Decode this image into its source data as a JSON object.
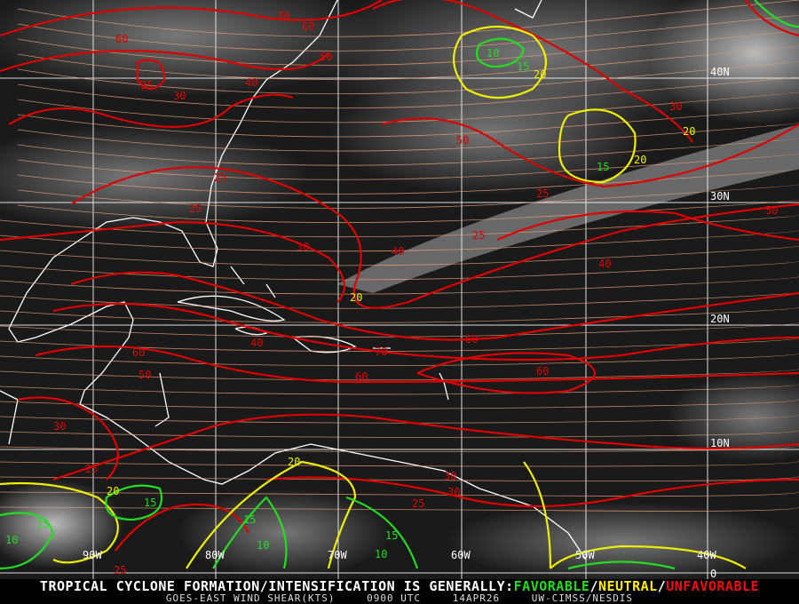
{
  "map": {
    "title_prefix": "TROPICAL CYCLONE FORMATION/INTENSIFICATION IS GENERALLY:",
    "legend": [
      {
        "label": "FAVORABLE",
        "color": "#22dd22"
      },
      {
        "label": "/",
        "color": "#ffffff"
      },
      {
        "label": "NEUTRAL",
        "color": "#ffee00"
      },
      {
        "label": "/",
        "color": "#ffffff"
      },
      {
        "label": "UNFAVORABLE",
        "color": "#ee1111"
      }
    ],
    "product": "GOES-EAST WIND SHEAR(KTS)",
    "time": "0900 UTC",
    "date": "14APR26",
    "source": "UW-CIMSS/NESDIS",
    "lat_labels": [
      "40N",
      "30N",
      "20N",
      "10N",
      "0"
    ],
    "lon_labels": [
      "90W",
      "80W",
      "70W",
      "60W",
      "50W",
      "40W"
    ],
    "colors": {
      "unfavorable": "#dd0000",
      "neutral": "#eeee00",
      "favorable": "#22dd22",
      "streamline": "#f0a070",
      "coast": "#ffffff",
      "grid": "#ffffff"
    },
    "contour_labels": {
      "red": [
        "70",
        "60",
        "50",
        "60",
        "25",
        "30",
        "40",
        "50",
        "30",
        "25",
        "25",
        "25",
        "30",
        "40",
        "25",
        "50",
        "40",
        "60",
        "70",
        "60",
        "60",
        "60",
        "50",
        "40",
        "30",
        "25",
        "30",
        "30",
        "25",
        "25"
      ],
      "yellow": [
        "20",
        "20",
        "20",
        "20",
        "20",
        "20"
      ],
      "green": [
        "10",
        "15",
        "15",
        "15",
        "15",
        "10",
        "10",
        "15",
        "15",
        "10"
      ]
    }
  }
}
